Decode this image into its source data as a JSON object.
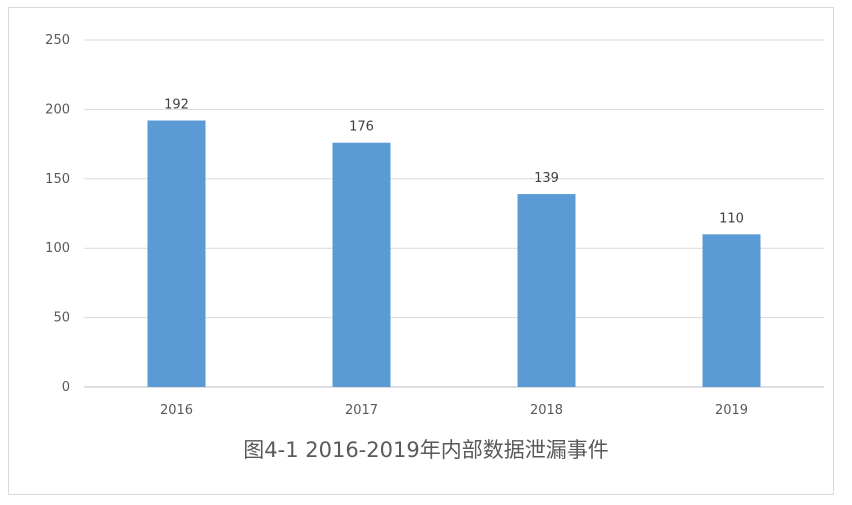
{
  "chart_data": {
    "type": "bar",
    "title": "图4-1 2016-2019年内部数据泄漏事件",
    "categories": [
      "2016",
      "2017",
      "2018",
      "2019"
    ],
    "values": [
      192,
      176,
      139,
      110
    ],
    "ylim": [
      0,
      250
    ],
    "yticks": [
      0,
      50,
      100,
      150,
      200,
      250
    ],
    "grid": true,
    "bar_color": "#5b9bd5"
  }
}
